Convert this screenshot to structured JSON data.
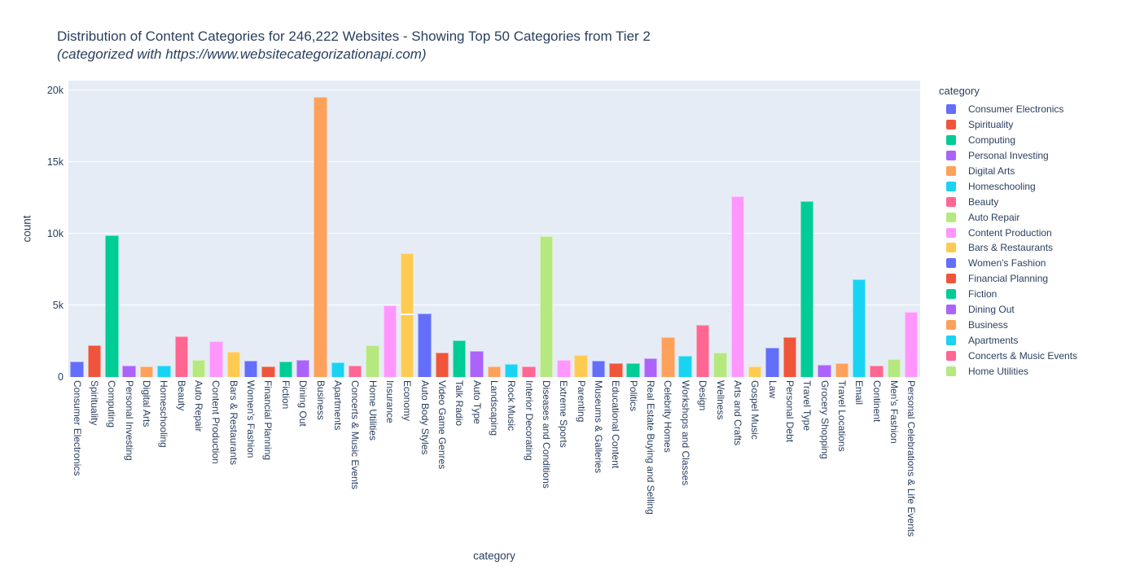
{
  "colors": {
    "paper_bg": "#FFFFFF",
    "plot_bg": "#E5ECF6",
    "grid": "#FFFFFF",
    "text": "#2A3F5F"
  },
  "chart_data": {
    "type": "bar",
    "title": "Distribution of Content Categories for 246,222 Websites - Showing Top 50 Categories from Tier 2",
    "subtitle": "(categorized with https://www.websitecategorizationapi.com)",
    "xlabel": "category",
    "ylabel": "count",
    "ylim": [
      0,
      20700
    ],
    "grid": true,
    "legend_position": "right",
    "legend_title": "category",
    "palette": [
      "#636EFA",
      "#EF553B",
      "#00CC96",
      "#AB63FA",
      "#FFA15A",
      "#19D3F3",
      "#FF6692",
      "#B6E880",
      "#FF97FF",
      "#FECB52"
    ],
    "yticks": [
      {
        "value": 0,
        "label": "0"
      },
      {
        "value": 5000,
        "label": "5k"
      },
      {
        "value": 10000,
        "label": "10k"
      },
      {
        "value": 15000,
        "label": "15k"
      },
      {
        "value": 20000,
        "label": "20k"
      }
    ],
    "legend_items": [
      "Consumer Electronics",
      "Spirituality",
      "Computing",
      "Personal Investing",
      "Digital Arts",
      "Homeschooling",
      "Beauty",
      "Auto Repair",
      "Content Production",
      "Bars & Restaurants",
      "Women's Fashion",
      "Financial Planning",
      "Fiction",
      "Dining Out",
      "Business",
      "Apartments",
      "Concerts & Music Events",
      "Home Utilities"
    ],
    "bars": [
      {
        "label": "Consumer Electronics",
        "value": 1080
      },
      {
        "label": "Spirituality",
        "value": 2210
      },
      {
        "label": "Computing",
        "value": 9900
      },
      {
        "label": "Personal Investing",
        "value": 800
      },
      {
        "label": "Digital Arts",
        "value": 750
      },
      {
        "label": "Homeschooling",
        "value": 780
      },
      {
        "label": "Beauty",
        "value": 2820
      },
      {
        "label": "Auto Repair",
        "value": 1190
      },
      {
        "label": "Content Production",
        "value": 2500
      },
      {
        "label": "Bars & Restaurants",
        "value": 1760
      },
      {
        "label": "Women's Fashion",
        "value": 1120
      },
      {
        "label": "Financial Planning",
        "value": 720
      },
      {
        "label": "Fiction",
        "value": 1060
      },
      {
        "label": "Dining Out",
        "value": 1210
      },
      {
        "label": "Business",
        "value": 19550
      },
      {
        "label": "Apartments",
        "value": 1000
      },
      {
        "label": "Concerts & Music Events",
        "value": 800
      },
      {
        "label": "Home Utilities",
        "value": 2200
      },
      {
        "label": "Insurance",
        "value": 5000
      },
      {
        "label": "Economy",
        "value": 8650,
        "segments": [
          4330,
          4320
        ]
      },
      {
        "label": "Auto Body Styles",
        "value": 4420
      },
      {
        "label": "Video Game Genres",
        "value": 1730
      },
      {
        "label": "Talk Radio",
        "value": 2540
      },
      {
        "label": "Auto Type",
        "value": 1840
      },
      {
        "label": "Landscaping",
        "value": 740
      },
      {
        "label": "Rock Music",
        "value": 930
      },
      {
        "label": "Interior Decorating",
        "value": 740
      },
      {
        "label": "Diseases and Conditions",
        "value": 9850
      },
      {
        "label": "Extreme Sports",
        "value": 1180
      },
      {
        "label": "Parenting",
        "value": 1530
      },
      {
        "label": "Museums & Galleries",
        "value": 1120
      },
      {
        "label": "Educational Content",
        "value": 990
      },
      {
        "label": "Politics",
        "value": 970
      },
      {
        "label": "Real Estate Buying and Selling",
        "value": 1290
      },
      {
        "label": "Celebrity Homes",
        "value": 2790
      },
      {
        "label": "Workshops and Classes",
        "value": 1460
      },
      {
        "label": "Design",
        "value": 3620
      },
      {
        "label": "Wellness",
        "value": 1720
      },
      {
        "label": "Arts and Crafts",
        "value": 12650
      },
      {
        "label": "Gospel Music",
        "value": 740
      },
      {
        "label": "Law",
        "value": 2060
      },
      {
        "label": "Personal Debt",
        "value": 2770
      },
      {
        "label": "Travel Type",
        "value": 12300
      },
      {
        "label": "Grocery Shopping",
        "value": 870
      },
      {
        "label": "Travel Locations",
        "value": 960
      },
      {
        "label": "Email",
        "value": 6800
      },
      {
        "label": "Continent",
        "value": 790
      },
      {
        "label": "Men's Fashion",
        "value": 1270
      },
      {
        "label": "Personal Celebrations & Life Events",
        "value": 4540
      }
    ]
  }
}
